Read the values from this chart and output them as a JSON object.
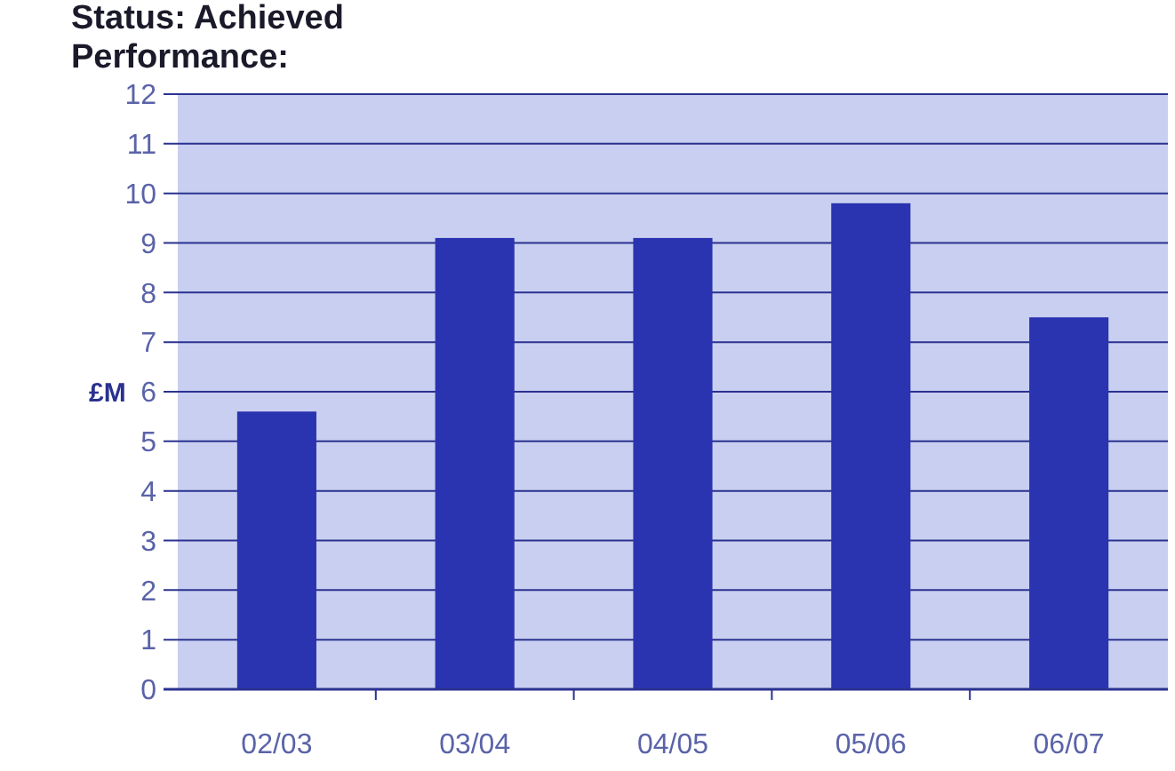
{
  "chart_data": {
    "type": "bar",
    "title": "Status: Achieved",
    "subtitle": "Performance:",
    "ylabel": "£M",
    "categories": [
      "02/03",
      "03/04",
      "04/05",
      "05/06",
      "06/07"
    ],
    "values": [
      5.6,
      9.1,
      9.1,
      9.8,
      7.5
    ],
    "color": "#2a33b0",
    "ylim": [
      0,
      12
    ],
    "yticks": [
      0,
      1,
      2,
      3,
      4,
      5,
      6,
      7,
      8,
      9,
      10,
      11,
      12
    ],
    "grid": "y"
  }
}
